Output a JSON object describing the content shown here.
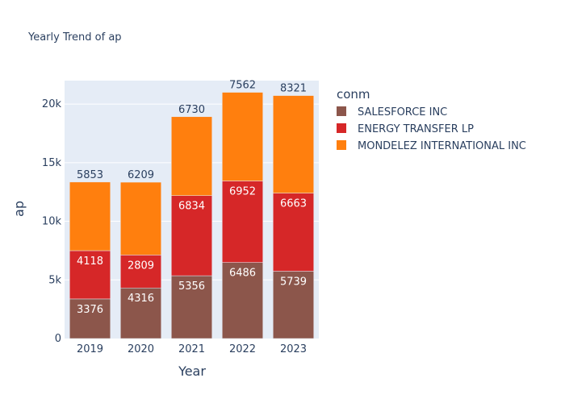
{
  "chart_data": {
    "type": "bar",
    "barmode": "stack",
    "title": "Yearly Trend of ap",
    "xlabel": "Year",
    "ylabel": "ap",
    "categories": [
      "2019",
      "2020",
      "2021",
      "2022",
      "2023"
    ],
    "ylim": [
      0,
      22000
    ],
    "yticks": [
      {
        "value": 0,
        "label": "0"
      },
      {
        "value": 5000,
        "label": "5k"
      },
      {
        "value": 10000,
        "label": "10k"
      },
      {
        "value": 15000,
        "label": "15k"
      },
      {
        "value": 20000,
        "label": "20k"
      }
    ],
    "grid": true,
    "legend_title": "conm",
    "legend_position": "right",
    "series": [
      {
        "name": "SALESFORCE INC",
        "color": "#8c564b",
        "values": [
          3376,
          4316,
          5356,
          6486,
          5739
        ]
      },
      {
        "name": "ENERGY TRANSFER LP",
        "color": "#d62728",
        "values": [
          4118,
          2809,
          6834,
          6952,
          6663
        ]
      },
      {
        "name": "MONDELEZ INTERNATIONAL INC",
        "color": "#ff7f0e",
        "values": [
          5853,
          6209,
          6730,
          7562,
          8321
        ]
      }
    ]
  }
}
